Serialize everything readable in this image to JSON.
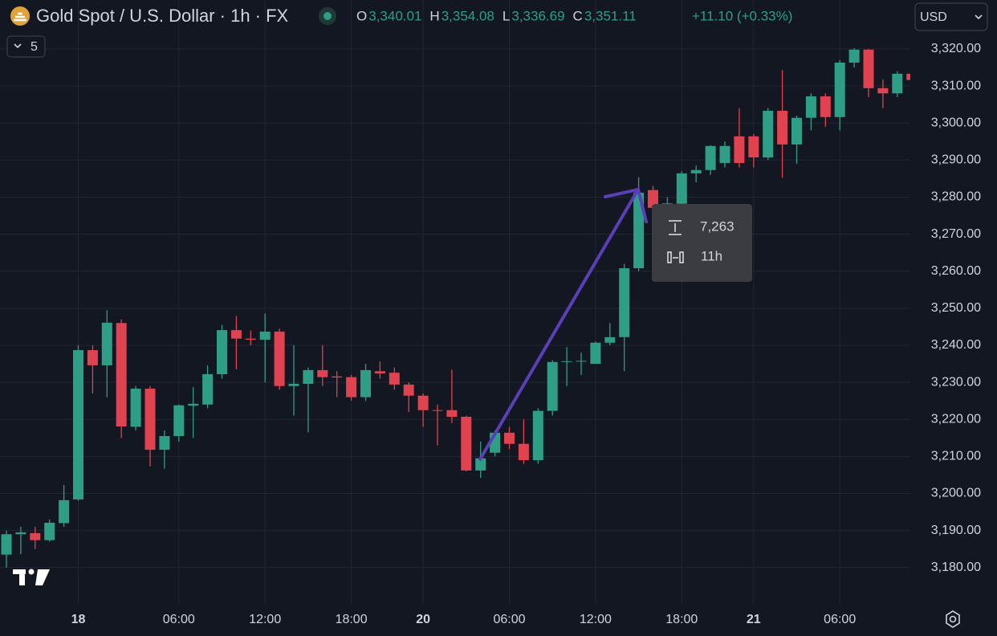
{
  "header": {
    "symbol": "Gold Spot / U.S. Dollar · 1h · FX",
    "ohlc": [
      {
        "label": "O",
        "value": "3,340.01"
      },
      {
        "label": "H",
        "value": "3,354.08"
      },
      {
        "label": "L",
        "value": "3,336.69"
      },
      {
        "label": "C",
        "value": "3,351.11"
      }
    ],
    "change": "+11.10 (+0.33%)",
    "currency": "USD",
    "indicators": "5"
  },
  "measure": {
    "volume": "7,263",
    "duration": "11h"
  },
  "chart_data": {
    "type": "candlestick",
    "categories": [
      null,
      null,
      null,
      null,
      null,
      "18",
      null,
      null,
      null,
      null,
      null,
      null,
      "06:00",
      null,
      null,
      null,
      null,
      null,
      "12:00",
      null,
      null,
      null,
      null,
      null,
      "18:00",
      null,
      null,
      null,
      null,
      "20",
      null,
      null,
      null,
      null,
      null,
      "06:00",
      null,
      null,
      null,
      null,
      null,
      "12:00",
      null,
      null,
      null,
      null,
      null,
      "18:00",
      null,
      null,
      null,
      null,
      "21",
      null,
      null,
      null,
      null,
      null,
      "06:00",
      null,
      null,
      null,
      null,
      null
    ],
    "open": [
      3183.5,
      3189,
      3189.3,
      3187.4,
      3192,
      3198.4,
      3238.7,
      3234.6,
      3246,
      3218,
      3228.3,
      3211.8,
      3215.5,
      3223.7,
      3224,
      3232.2,
      3244.1,
      3241.8,
      3241.5,
      3243.7,
      3229,
      3229.6,
      3233.3,
      3231.6,
      3231.4,
      3226,
      3233,
      3232.6,
      3229.4,
      3226.4,
      3222.5,
      3222.5,
      3220.7,
      3206.2,
      3211,
      3216.4,
      3213.4,
      3209,
      3222.3,
      3235.6,
      3235.6,
      3235,
      3240.7,
      3242.2,
      3260.8,
      3281.9,
      3277.1,
      3278.2,
      3286.4,
      3287.3,
      3289.2,
      3296.4,
      3296.4,
      3290.7,
      3303.3,
      3294.2,
      3301.4,
      3307.2,
      3301.6,
      3316.3,
      3319.8,
      3309.4,
      3308,
      3313.3
    ],
    "high": [
      3190,
      3191,
      3191,
      3193,
      3202.3,
      3240,
      3240,
      3249.5,
      3247,
      3229,
      3229,
      3217,
      3224,
      3228.7,
      3234.6,
      3245.5,
      3247.9,
      3244,
      3248.6,
      3244.5,
      3240,
      3234,
      3240,
      3233,
      3232,
      3235,
      3235.6,
      3234,
      3230,
      3227,
      3224,
      3233.4,
      3221,
      3214,
      3217,
      3218,
      3220,
      3223,
      3236,
      3239.5,
      3238,
      3241,
      3246,
      3262,
      3285.4,
      3283,
      3280,
      3287,
      3288.5,
      3294,
      3295,
      3304,
      3297,
      3304,
      3314.3,
      3302,
      3308,
      3308,
      3317,
      3320.2,
      3320,
      3311.7,
      3314,
      3316.5
    ],
    "low": [
      3180,
      3183.6,
      3185,
      3187,
      3191,
      3198,
      3227,
      3226,
      3215,
      3217,
      3207.3,
      3206.7,
      3214,
      3215,
      3223,
      3231,
      3233.5,
      3240,
      3230,
      3228,
      3221,
      3216.5,
      3229,
      3226,
      3225,
      3225,
      3231,
      3228,
      3222,
      3218,
      3213,
      3219,
      3206,
      3204.2,
      3210,
      3212,
      3208,
      3208,
      3221,
      3229,
      3232,
      3235,
      3240,
      3233,
      3260,
      3276,
      3276,
      3278,
      3284,
      3286,
      3288,
      3288,
      3288,
      3290,
      3285.2,
      3289,
      3298,
      3299,
      3298,
      3315,
      3307,
      3304,
      3307,
      3308
    ],
    "close": [
      3189,
      3189.5,
      3187.4,
      3192.1,
      3198.2,
      3238.7,
      3234.6,
      3246.1,
      3218.1,
      3228.3,
      3211.8,
      3215.5,
      3223.8,
      3224.2,
      3232.2,
      3244.1,
      3241.8,
      3241.5,
      3243.7,
      3229,
      3229.6,
      3233.3,
      3231.4,
      3231.3,
      3226,
      3233.3,
      3232.4,
      3229.4,
      3226.4,
      3222.5,
      3222.4,
      3220.7,
      3206.2,
      3209.5,
      3216.4,
      3213.4,
      3209,
      3222.3,
      3235.5,
      3235.7,
      3235.8,
      3240.7,
      3242.2,
      3260.8,
      3281.2,
      3277.1,
      3278.3,
      3286.4,
      3287.3,
      3293.8,
      3293.8,
      3289.2,
      3290.7,
      3303.3,
      3294.2,
      3301.4,
      3307.2,
      3301.6,
      3316.3,
      3319.8,
      3309.4,
      3308,
      3313.3,
      3311.6
    ],
    "up_color": "#2e9e86",
    "down_color": "#e0434f",
    "ylim": [
      3170.2,
      3333.2
    ],
    "yticks": [
      {
        "value": 3180,
        "label": "3,180.00"
      },
      {
        "value": 3190,
        "label": "3,190.00"
      },
      {
        "value": 3200,
        "label": "3,200.00"
      },
      {
        "value": 3210,
        "label": "3,210.00"
      },
      {
        "value": 3220,
        "label": "3,220.00"
      },
      {
        "value": 3230,
        "label": "3,230.00"
      },
      {
        "value": 3240,
        "label": "3,240.00"
      },
      {
        "value": 3250,
        "label": "3,250.00"
      },
      {
        "value": 3260,
        "label": "3,260.00"
      },
      {
        "value": 3270,
        "label": "3,270.00"
      },
      {
        "value": 3280,
        "label": "3,280.00"
      },
      {
        "value": 3290,
        "label": "3,290.00"
      },
      {
        "value": 3300,
        "label": "3,300.00"
      },
      {
        "value": 3310,
        "label": "3,310.00"
      },
      {
        "value": 3320,
        "label": "3,320.00"
      }
    ],
    "grid": true
  }
}
